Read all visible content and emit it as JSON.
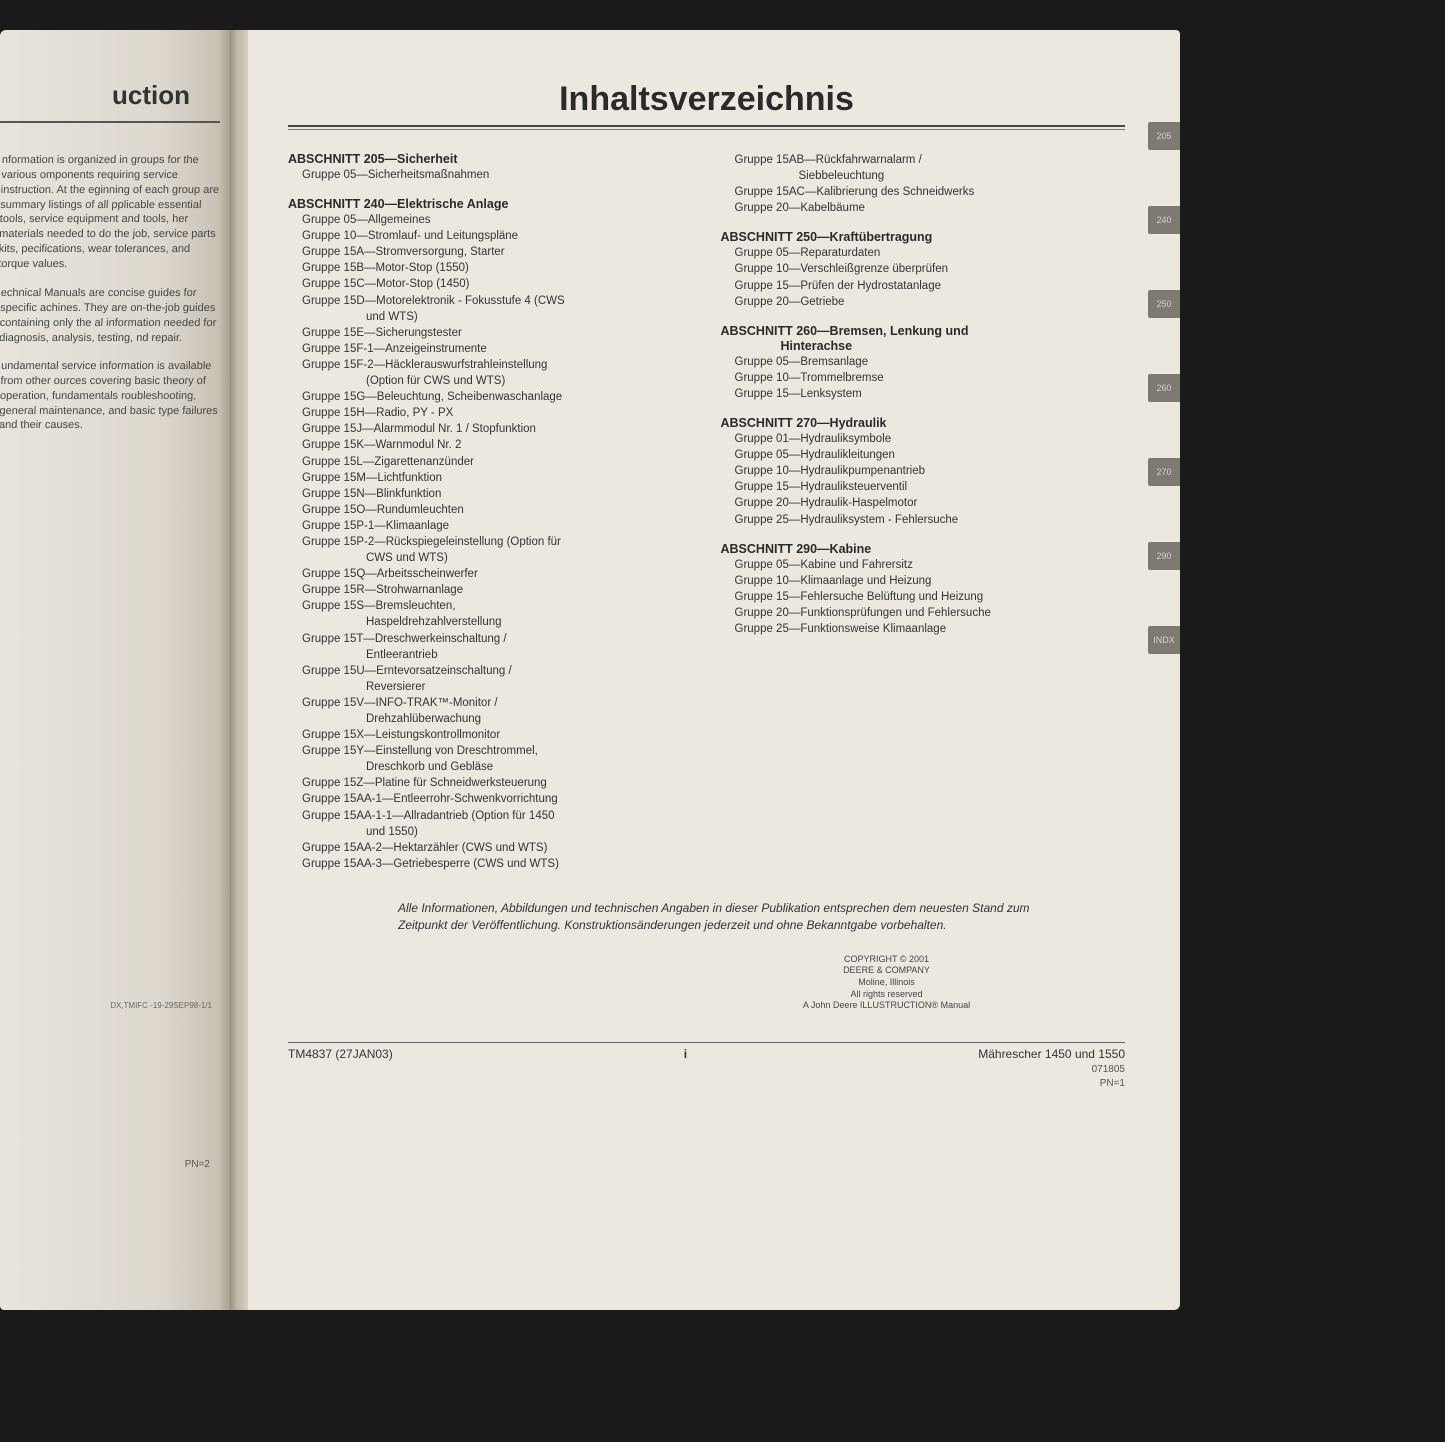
{
  "leftPage": {
    "titleFragment": "uction",
    "paragraphs": [
      "nformation is organized in groups for the various omponents requiring service instruction. At the eginning of each group are summary listings of all pplicable essential tools, service equipment and tools, her materials needed to do the job, service parts kits, pecifications, wear tolerances, and torque values.",
      "echnical Manuals are concise guides for specific achines. They are on-the-job guides containing only the al information needed for diagnosis, analysis, testing, nd repair.",
      "undamental service information is available from other ources covering basic theory of operation, fundamentals roubleshooting, general maintenance, and basic type failures and their causes."
    ],
    "footerCode": "DX,TMIFC -19-29SEP98-1/1",
    "pn": "PN=2"
  },
  "tocTitle": "Inhaltsverzeichnis",
  "tabs": [
    "205",
    "240",
    "250",
    "260",
    "270",
    "290",
    "INDX"
  ],
  "leftCol": [
    {
      "type": "head",
      "text": "ABSCHNITT 205—Sicherheit"
    },
    {
      "type": "group",
      "text": "Gruppe 05—Sicherheitsmaßnahmen"
    },
    {
      "type": "head",
      "text": "ABSCHNITT 240—Elektrische Anlage"
    },
    {
      "type": "group",
      "text": "Gruppe 05—Allgemeines"
    },
    {
      "type": "group",
      "text": "Gruppe 10—Stromlauf- und Leitungspläne"
    },
    {
      "type": "group",
      "text": "Gruppe 15A—Stromversorgung, Starter"
    },
    {
      "type": "group",
      "text": "Gruppe 15B—Motor-Stop (1550)"
    },
    {
      "type": "group",
      "text": "Gruppe 15C—Motor-Stop (1450)"
    },
    {
      "type": "group",
      "text": "Gruppe 15D—Motorelektronik - Fokusstufe 4 (CWS"
    },
    {
      "type": "cont",
      "text": "und WTS)"
    },
    {
      "type": "group",
      "text": "Gruppe 15E—Sicherungstester"
    },
    {
      "type": "group",
      "text": "Gruppe 15F-1—Anzeigeinstrumente"
    },
    {
      "type": "group",
      "text": "Gruppe 15F-2—Häcklerauswurfstrahleinstellung"
    },
    {
      "type": "cont",
      "text": "(Option für CWS und WTS)"
    },
    {
      "type": "group",
      "text": "Gruppe 15G—Beleuchtung, Scheibenwaschanlage"
    },
    {
      "type": "group",
      "text": "Gruppe 15H—Radio, PY - PX"
    },
    {
      "type": "group",
      "text": "Gruppe 15J—Alarmmodul Nr. 1 / Stopfunktion"
    },
    {
      "type": "group",
      "text": "Gruppe 15K—Warnmodul Nr. 2"
    },
    {
      "type": "group",
      "text": "Gruppe 15L—Zigarettenanzünder"
    },
    {
      "type": "group",
      "text": "Gruppe 15M—Lichtfunktion"
    },
    {
      "type": "group",
      "text": "Gruppe 15N—Blinkfunktion"
    },
    {
      "type": "group",
      "text": "Gruppe 15O—Rundumleuchten"
    },
    {
      "type": "group",
      "text": "Gruppe 15P-1—Klimaanlage"
    },
    {
      "type": "group",
      "text": "Gruppe 15P-2—Rückspiegeleinstellung (Option für"
    },
    {
      "type": "cont",
      "text": "CWS und WTS)"
    },
    {
      "type": "group",
      "text": "Gruppe 15Q—Arbeitsscheinwerfer"
    },
    {
      "type": "group",
      "text": "Gruppe 15R—Strohwarnanlage"
    },
    {
      "type": "group",
      "text": "Gruppe 15S—Bremsleuchten,"
    },
    {
      "type": "cont",
      "text": "Haspeldrehzahlverstellung"
    },
    {
      "type": "group",
      "text": "Gruppe 15T—Dreschwerkeinschaltung /"
    },
    {
      "type": "cont",
      "text": "Entleerantrieb"
    },
    {
      "type": "group",
      "text": "Gruppe 15U—Erntevorsatzeinschaltung /"
    },
    {
      "type": "cont",
      "text": "Reversierer"
    },
    {
      "type": "group",
      "text": "Gruppe 15V—INFO-TRAK™-Monitor /"
    },
    {
      "type": "cont",
      "text": "Drehzahlüberwachung"
    },
    {
      "type": "group",
      "text": "Gruppe 15X—Leistungskontrollmonitor"
    },
    {
      "type": "group",
      "text": "Gruppe 15Y—Einstellung von Dreschtrommel,"
    },
    {
      "type": "cont",
      "text": "Dreschkorb und Gebläse"
    },
    {
      "type": "group",
      "text": "Gruppe 15Z—Platine für Schneidwerksteuerung"
    },
    {
      "type": "group",
      "text": "Gruppe 15AA-1—Entleerrohr-Schwenkvorrichtung"
    },
    {
      "type": "group",
      "text": "Gruppe 15AA-1-1—Allradantrieb (Option für 1450"
    },
    {
      "type": "cont",
      "text": "und 1550)"
    },
    {
      "type": "group",
      "text": "Gruppe 15AA-2—Hektarzähler (CWS und WTS)"
    },
    {
      "type": "group",
      "text": "Gruppe 15AA-3—Getriebesperre (CWS und WTS)"
    }
  ],
  "rightCol": [
    {
      "type": "group",
      "text": "Gruppe 15AB—Rückfahrwarnalarm /"
    },
    {
      "type": "cont",
      "text": "Siebbeleuchtung"
    },
    {
      "type": "group",
      "text": "Gruppe 15AC—Kalibrierung des Schneidwerks"
    },
    {
      "type": "group",
      "text": "Gruppe 20—Kabelbäume"
    },
    {
      "type": "head",
      "text": "ABSCHNITT 250—Kraftübertragung"
    },
    {
      "type": "group",
      "text": "Gruppe 05—Reparaturdaten"
    },
    {
      "type": "group",
      "text": "Gruppe 10—Verschleißgrenze überprüfen"
    },
    {
      "type": "group",
      "text": "Gruppe 15—Prüfen der Hydrostatanlage"
    },
    {
      "type": "group",
      "text": "Gruppe 20—Getriebe"
    },
    {
      "type": "head",
      "text": "ABSCHNITT 260—Bremsen, Lenkung und"
    },
    {
      "type": "headcont",
      "text": "Hinterachse"
    },
    {
      "type": "group",
      "text": "Gruppe 05—Bremsanlage"
    },
    {
      "type": "group",
      "text": "Gruppe 10—Trommelbremse"
    },
    {
      "type": "group",
      "text": "Gruppe 15—Lenksystem"
    },
    {
      "type": "head",
      "text": "ABSCHNITT 270—Hydraulik"
    },
    {
      "type": "group",
      "text": "Gruppe 01—Hydrauliksymbole"
    },
    {
      "type": "group",
      "text": "Gruppe 05—Hydraulikleitungen"
    },
    {
      "type": "group",
      "text": "Gruppe 10—Hydraulikpumpenantrieb"
    },
    {
      "type": "group",
      "text": "Gruppe 15—Hydrauliksteuerventil"
    },
    {
      "type": "group",
      "text": "Gruppe 20—Hydraulik-Haspelmotor"
    },
    {
      "type": "group",
      "text": "Gruppe 25—Hydrauliksystem - Fehlersuche"
    },
    {
      "type": "head",
      "text": "ABSCHNITT 290—Kabine"
    },
    {
      "type": "group",
      "text": "Gruppe 05—Kabine und Fahrersitz"
    },
    {
      "type": "group",
      "text": "Gruppe 10—Klimaanlage und Heizung"
    },
    {
      "type": "group",
      "text": "Gruppe 15—Fehlersuche Belüftung und Heizung"
    },
    {
      "type": "group",
      "text": "Gruppe 20—Funktionsprüfungen und Fehlersuche"
    },
    {
      "type": "group",
      "text": "Gruppe 25—Funktionsweise Klimaanlage"
    }
  ],
  "disclaimer": "Alle Informationen, Abbildungen und technischen Angaben in dieser Publikation entsprechen dem neuesten Stand zum Zeitpunkt der Veröffentlichung. Konstruktionsänderungen jederzeit und ohne Bekanntgabe vorbehalten.",
  "copyright": [
    "COPYRIGHT © 2001",
    "DEERE & COMPANY",
    "Moline, Illinois",
    "All rights reserved",
    "A John Deere ILLUSTRUCTION® Manual"
  ],
  "footer": {
    "left": "TM4837 (27JAN03)",
    "center": "i",
    "rightTitle": "Mährescher 1450 und 1550",
    "rightCode": "071805",
    "pn": "PN=1"
  }
}
